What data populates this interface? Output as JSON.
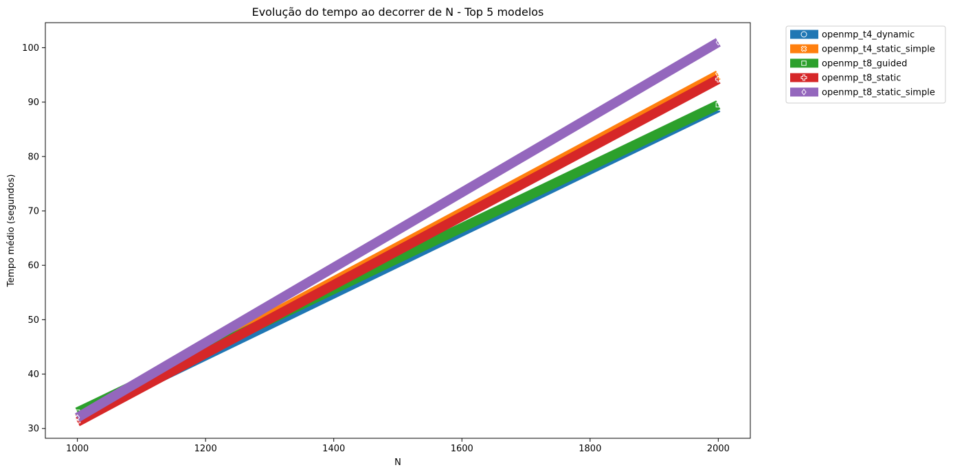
{
  "chart_data": {
    "type": "line",
    "title": "Evolução do tempo ao decorrer de N - Top 5 modelos",
    "xlabel": "N",
    "ylabel": "Tempo médio (segundos)",
    "x": [
      1000,
      2000
    ],
    "xlim": [
      950,
      2050
    ],
    "ylim": [
      28.2,
      104.6
    ],
    "xticks": [
      1000,
      1200,
      1400,
      1600,
      1800,
      2000
    ],
    "yticks": [
      30,
      40,
      50,
      60,
      70,
      80,
      90,
      100
    ],
    "grid": false,
    "legend_position": "outside-top-right",
    "series": [
      {
        "name": "openmp_t4_dynamic",
        "values": [
          32.0,
          89.0
        ],
        "color": "#1f77b4",
        "marker": "circle"
      },
      {
        "name": "openmp_t4_static_simple",
        "values": [
          31.8,
          95.0
        ],
        "color": "#ff7f0e",
        "marker": "x-filled"
      },
      {
        "name": "openmp_t8_guided",
        "values": [
          33.0,
          89.5
        ],
        "color": "#2ca02c",
        "marker": "square"
      },
      {
        "name": "openmp_t8_static",
        "values": [
          31.2,
          94.2
        ],
        "color": "#d62728",
        "marker": "plus-filled"
      },
      {
        "name": "openmp_t8_static_simple",
        "values": [
          32.0,
          101.0
        ],
        "color": "#9467bd",
        "marker": "diamond"
      }
    ]
  }
}
